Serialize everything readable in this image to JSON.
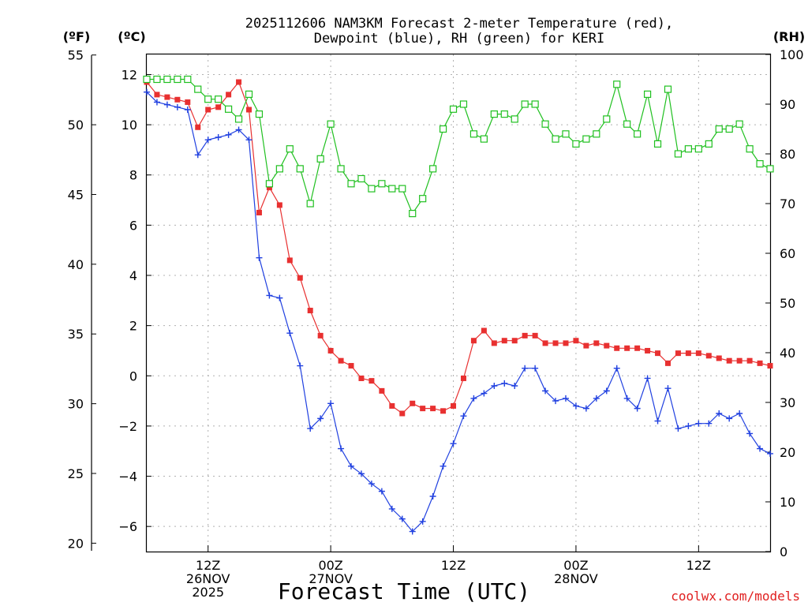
{
  "chart_data": {
    "type": "line",
    "title_line1": "2025112606 NAM3KM Forecast 2-meter Temperature (red),",
    "title_line2": "Dewpoint (blue), RH (green) for KERI",
    "xlabel": "Forecast Time (UTC)",
    "credit": "coolwx.com/models",
    "units": {
      "fahrenheit": "(ºF)",
      "celsius": "(ºC)",
      "rh": "(RH)"
    },
    "x_hours_range": [
      6,
      67
    ],
    "celsius_range": [
      -7.0,
      12.8
    ],
    "fahrenheit_ticks": [
      "20",
      "25",
      "30",
      "35",
      "40",
      "45",
      "50",
      "55"
    ],
    "celsius_ticks": [
      "−6",
      "−4",
      "−2",
      "0",
      "2",
      "4",
      "6",
      "8",
      "10",
      "12"
    ],
    "rh_ticks": [
      "0",
      "10",
      "20",
      "30",
      "40",
      "50",
      "60",
      "70",
      "80",
      "90",
      "100"
    ],
    "x_ticks": [
      {
        "hour": 12,
        "lines": [
          "12Z",
          "26NOV",
          "2025"
        ]
      },
      {
        "hour": 24,
        "lines": [
          "00Z",
          "27NOV"
        ]
      },
      {
        "hour": 36,
        "lines": [
          "12Z"
        ]
      },
      {
        "hour": 48,
        "lines": [
          "00Z",
          "28NOV"
        ]
      },
      {
        "hour": 60,
        "lines": [
          "12Z"
        ]
      }
    ],
    "x_hours": [
      6,
      7,
      8,
      9,
      10,
      11,
      12,
      13,
      14,
      15,
      16,
      17,
      18,
      19,
      20,
      21,
      22,
      23,
      24,
      25,
      26,
      27,
      28,
      29,
      30,
      31,
      32,
      33,
      34,
      35,
      36,
      37,
      38,
      39,
      40,
      41,
      42,
      43,
      44,
      45,
      46,
      47,
      48,
      49,
      50,
      51,
      52,
      53,
      54,
      55,
      56,
      57,
      58,
      59,
      60,
      61,
      62,
      63,
      64,
      65,
      66,
      67
    ],
    "series": [
      {
        "name": "Temperature",
        "unit": "°C",
        "color": "#e83030",
        "marker": "filled-square",
        "values": [
          11.7,
          11.2,
          11.1,
          11.0,
          10.9,
          9.9,
          10.6,
          10.7,
          11.2,
          11.7,
          10.6,
          6.5,
          7.5,
          6.8,
          4.6,
          3.9,
          2.6,
          1.6,
          1.0,
          0.6,
          0.4,
          -0.1,
          -0.2,
          -0.6,
          -1.2,
          -1.5,
          -1.1,
          -1.3,
          -1.3,
          -1.4,
          -1.2,
          -0.1,
          1.4,
          1.8,
          1.3,
          1.4,
          1.4,
          1.6,
          1.6,
          1.3,
          1.3,
          1.3,
          1.4,
          1.2,
          1.3,
          1.2,
          1.1,
          1.1,
          1.1,
          1.0,
          0.9,
          0.5,
          0.9,
          0.9,
          0.9,
          0.8,
          0.7,
          0.6,
          0.6,
          0.6,
          0.5,
          0.4
        ]
      },
      {
        "name": "Dewpoint",
        "unit": "°C",
        "color": "#2040e0",
        "marker": "plus",
        "values": [
          11.3,
          10.9,
          10.8,
          10.7,
          10.6,
          8.8,
          9.4,
          9.5,
          9.6,
          9.8,
          9.4,
          4.7,
          3.2,
          3.1,
          1.7,
          0.4,
          -2.1,
          -1.7,
          -1.1,
          -2.9,
          -3.6,
          -3.9,
          -4.3,
          -4.6,
          -5.3,
          -5.7,
          -6.2,
          -5.8,
          -4.8,
          -3.6,
          -2.7,
          -1.6,
          -0.9,
          -0.7,
          -0.4,
          -0.3,
          -0.4,
          0.3,
          0.3,
          -0.6,
          -1.0,
          -0.9,
          -1.2,
          -1.3,
          -0.9,
          -0.6,
          0.3,
          -0.9,
          -1.3,
          -0.1,
          -1.8,
          -0.5,
          -2.1,
          -2.0,
          -1.9,
          -1.9,
          -1.5,
          -1.7,
          -1.5,
          -2.3,
          -2.9,
          -3.1
        ]
      },
      {
        "name": "RH",
        "unit": "%",
        "color": "#20c020",
        "marker": "open-square",
        "values": [
          95,
          95,
          95,
          95,
          95,
          93,
          91,
          91,
          89,
          87,
          92,
          88,
          74,
          77,
          81,
          77,
          70,
          79,
          86,
          77,
          74,
          75,
          73,
          74,
          73,
          73,
          68,
          71,
          77,
          85,
          89,
          90,
          84,
          83,
          88,
          88,
          87,
          90,
          90,
          86,
          83,
          84,
          82,
          83,
          84,
          87,
          94,
          86,
          84,
          92,
          82,
          93,
          80,
          81,
          81,
          82,
          85,
          85,
          86,
          81,
          78,
          77
        ]
      }
    ]
  }
}
